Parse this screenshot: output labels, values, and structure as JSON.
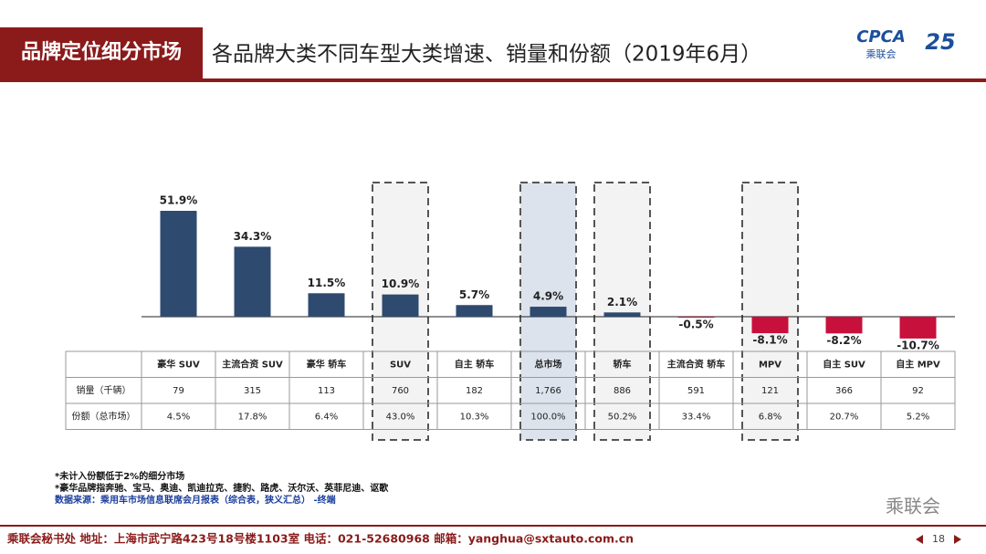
{
  "header": {
    "section": "品牌定位细分市场",
    "title": "各品牌大类不同车型大类增速、销量和份额（2019年6月）",
    "logo_text": "CPCA",
    "logo_sub": "乘联会",
    "anniversary": "25"
  },
  "chart_data": {
    "type": "bar",
    "categories": [
      "豪华 SUV",
      "主流合资 SUV",
      "豪华 轿车",
      "SUV",
      "自主 轿车",
      "总市场",
      "轿车",
      "主流合资 轿车",
      "MPV",
      "自主 SUV",
      "自主 MPV"
    ],
    "values": [
      51.9,
      34.3,
      11.5,
      10.9,
      5.7,
      4.9,
      2.1,
      -0.5,
      -8.1,
      -8.2,
      -10.7
    ],
    "value_labels": [
      "51.9%",
      "34.3%",
      "11.5%",
      "10.9%",
      "5.7%",
      "4.9%",
      "2.1%",
      "-0.5%",
      "-8.1%",
      "-8.2%",
      "-10.7%"
    ],
    "positive_color": "#2f4a6f",
    "negative_color": "#c8103c",
    "highlighted": [
      3,
      5,
      6,
      8
    ],
    "filled_highlight": 5,
    "rows": [
      {
        "label": "销量（千辆）",
        "values": [
          79,
          315,
          113,
          760,
          182,
          1766,
          886,
          591,
          121,
          366,
          92
        ],
        "value_labels": [
          "79",
          "315",
          "113",
          "760",
          "182",
          "1,766",
          "886",
          "591",
          "121",
          "366",
          "92"
        ]
      },
      {
        "label": "份额（总市场）",
        "values": [
          4.5,
          17.8,
          6.4,
          43.0,
          10.3,
          100.0,
          50.2,
          33.4,
          6.8,
          20.7,
          5.2
        ],
        "value_labels": [
          "4.5%",
          "17.8%",
          "6.4%",
          "43.0%",
          "10.3%",
          "100.0%",
          "50.2%",
          "33.4%",
          "6.8%",
          "20.7%",
          "5.2%"
        ]
      }
    ]
  },
  "notes": [
    "*未计入份额低于2%的细分市场",
    "*豪华品牌指奔驰、宝马、奥迪、凯迪拉克、捷豹、路虎、沃尔沃、英菲尼迪、讴歌"
  ],
  "source": "数据来源：乘用车市场信息联席会月报表（综合表，狭义汇总）  -终端",
  "watermark": "乘联会",
  "footer": {
    "text": "乘联会秘书处  地址：上海市武宁路423号18号楼1103室  电话：021-52680968  邮箱：yanghua@sxtauto.com.cn",
    "page": "18"
  }
}
